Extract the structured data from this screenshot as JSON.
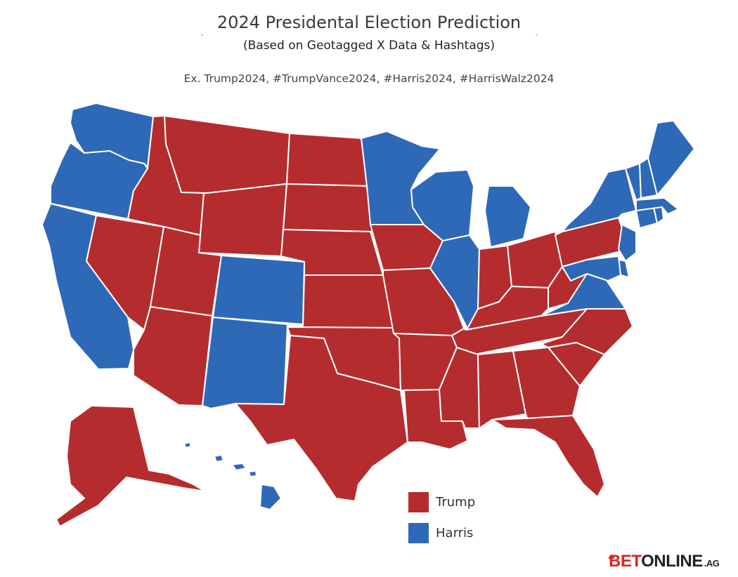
{
  "header": {
    "title": "2024 Presidental Election Prediction",
    "subtitle": "(Based on Geotagged X Data & Hashtags)",
    "hashtags": "Ex. Trump2024, #TrumpVance2024, #Harris2024, #HarrisWalz2024"
  },
  "legend": [
    {
      "label": "Trump",
      "color": "#b52c2f"
    },
    {
      "label": "Harris",
      "color": "#2e69b8"
    }
  ],
  "colors": {
    "trump": "#b52c2f",
    "harris": "#2e69b8",
    "border": "#ffffff"
  },
  "states": [
    {
      "abbr": "WA",
      "winner": "harris"
    },
    {
      "abbr": "OR",
      "winner": "harris"
    },
    {
      "abbr": "CA",
      "winner": "harris"
    },
    {
      "abbr": "NV",
      "winner": "trump"
    },
    {
      "abbr": "ID",
      "winner": "trump"
    },
    {
      "abbr": "MT",
      "winner": "trump"
    },
    {
      "abbr": "WY",
      "winner": "trump"
    },
    {
      "abbr": "UT",
      "winner": "trump"
    },
    {
      "abbr": "AZ",
      "winner": "trump"
    },
    {
      "abbr": "CO",
      "winner": "harris"
    },
    {
      "abbr": "NM",
      "winner": "harris"
    },
    {
      "abbr": "ND",
      "winner": "trump"
    },
    {
      "abbr": "SD",
      "winner": "trump"
    },
    {
      "abbr": "NE",
      "winner": "trump"
    },
    {
      "abbr": "KS",
      "winner": "trump"
    },
    {
      "abbr": "OK",
      "winner": "trump"
    },
    {
      "abbr": "TX",
      "winner": "trump"
    },
    {
      "abbr": "MN",
      "winner": "harris"
    },
    {
      "abbr": "IA",
      "winner": "trump"
    },
    {
      "abbr": "MO",
      "winner": "trump"
    },
    {
      "abbr": "AR",
      "winner": "trump"
    },
    {
      "abbr": "LA",
      "winner": "trump"
    },
    {
      "abbr": "WI",
      "winner": "harris"
    },
    {
      "abbr": "IL",
      "winner": "harris"
    },
    {
      "abbr": "MI",
      "winner": "harris"
    },
    {
      "abbr": "IN",
      "winner": "trump"
    },
    {
      "abbr": "OH",
      "winner": "trump"
    },
    {
      "abbr": "KY",
      "winner": "trump"
    },
    {
      "abbr": "TN",
      "winner": "trump"
    },
    {
      "abbr": "MS",
      "winner": "trump"
    },
    {
      "abbr": "AL",
      "winner": "trump"
    },
    {
      "abbr": "GA",
      "winner": "trump"
    },
    {
      "abbr": "FL",
      "winner": "trump"
    },
    {
      "abbr": "SC",
      "winner": "trump"
    },
    {
      "abbr": "NC",
      "winner": "trump"
    },
    {
      "abbr": "WV",
      "winner": "trump"
    },
    {
      "abbr": "VA",
      "winner": "harris"
    },
    {
      "abbr": "PA",
      "winner": "trump"
    },
    {
      "abbr": "NY",
      "winner": "harris"
    },
    {
      "abbr": "NJ",
      "winner": "harris"
    },
    {
      "abbr": "DE",
      "winner": "harris"
    },
    {
      "abbr": "MD",
      "winner": "harris"
    },
    {
      "abbr": "CT",
      "winner": "harris"
    },
    {
      "abbr": "RI",
      "winner": "harris"
    },
    {
      "abbr": "MA",
      "winner": "harris"
    },
    {
      "abbr": "VT",
      "winner": "harris"
    },
    {
      "abbr": "NH",
      "winner": "harris"
    },
    {
      "abbr": "ME",
      "winner": "harris"
    },
    {
      "abbr": "AK",
      "winner": "trump"
    },
    {
      "abbr": "HI",
      "winner": "harris"
    }
  ],
  "logo": {
    "bet": "BET",
    "online": "ONLINE",
    "tld": ".AG"
  }
}
